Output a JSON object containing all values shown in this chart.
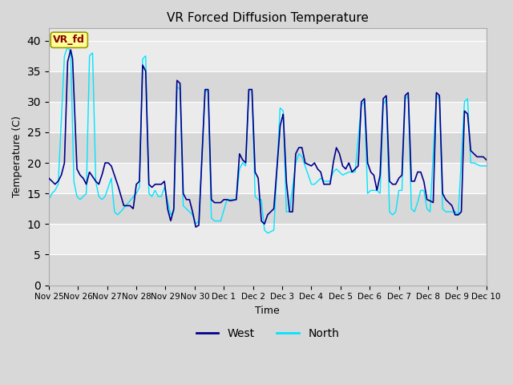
{
  "title": "VR Forced Diffusion Temperature",
  "xlabel": "Time",
  "ylabel": "Temperature (C)",
  "ylim": [
    0,
    42
  ],
  "yticks": [
    0,
    5,
    10,
    15,
    20,
    25,
    30,
    35,
    40
  ],
  "fig_bg_color": "#d8d8d8",
  "plot_bg_color": "#e8e8e8",
  "west_color": "#00008B",
  "north_color": "#00E5FF",
  "legend_label": "VR_fd",
  "legend_box_facecolor": "#FFFF99",
  "legend_box_edgecolor": "#999900",
  "legend_text_color": "#8B0000",
  "x_tick_labels": [
    "Nov 25",
    "Nov 26",
    "Nov 27",
    "Nov 28",
    "Nov 29",
    "Nov 30",
    "Dec 1",
    "Dec 2",
    "Dec 3",
    "Dec 4",
    "Dec 5",
    "Dec 6",
    "Dec 7",
    "Dec 8",
    "Dec 9",
    "Dec 10"
  ],
  "grid_color": "#ffffff",
  "band_color_light": "#ebebeb",
  "band_color_dark": "#d8d8d8",
  "days": 15,
  "num_points": 3000
}
